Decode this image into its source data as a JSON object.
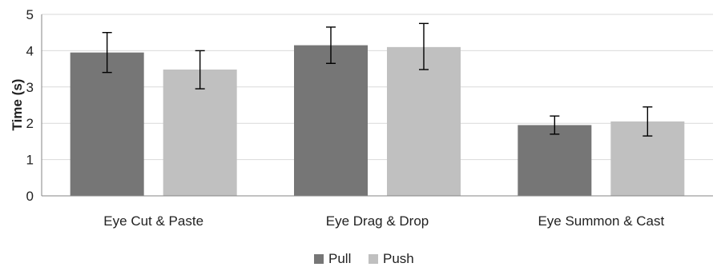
{
  "chart_data": {
    "type": "bar",
    "ylabel": "Time (s)",
    "xlabel": "",
    "ylim": [
      0,
      5
    ],
    "yticks": [
      0,
      1,
      2,
      3,
      4,
      5
    ],
    "grid": true,
    "legend_position": "bottom-center",
    "categories": [
      "Eye Cut & Paste",
      "Eye Drag & Drop",
      "Eye Summon & Cast"
    ],
    "series": [
      {
        "name": "Pull",
        "color": "#767676",
        "values": [
          3.95,
          4.15,
          1.95
        ],
        "error_low": [
          3.4,
          3.65,
          1.7
        ],
        "error_high": [
          4.5,
          4.65,
          2.2
        ]
      },
      {
        "name": "Push",
        "color": "#c0c0c0",
        "values": [
          3.48,
          4.1,
          2.05
        ],
        "error_low": [
          2.95,
          3.48,
          1.65
        ],
        "error_high": [
          4.0,
          4.75,
          2.45
        ]
      }
    ]
  }
}
